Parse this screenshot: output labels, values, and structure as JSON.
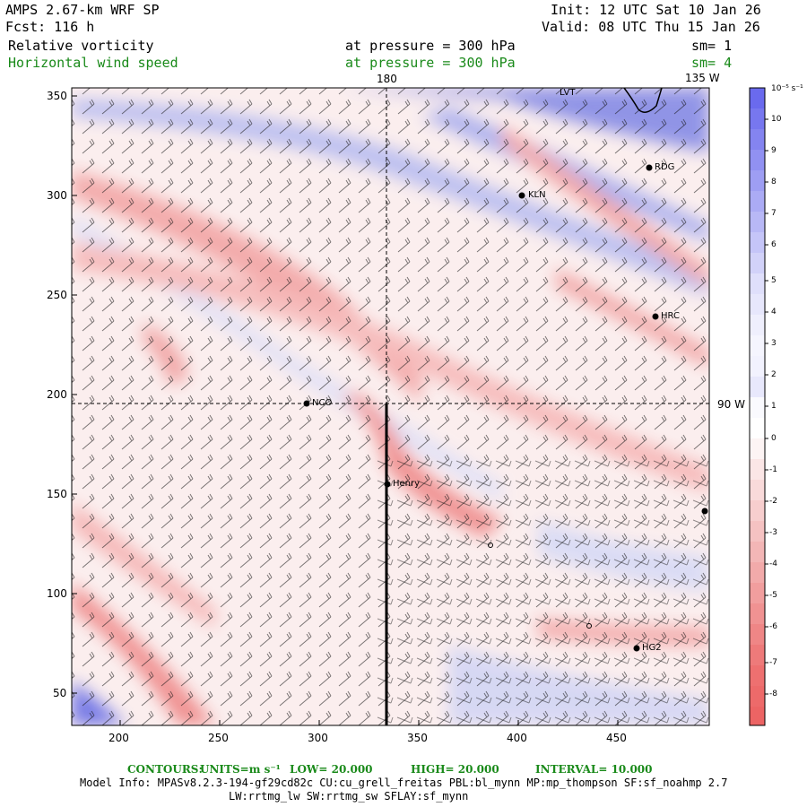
{
  "header": {
    "model": "AMPS 2.67-km WRF SP",
    "fcst": "Fcst:  116 h",
    "init": "Init: 12 UTC Sat 10 Jan 26",
    "valid": "Valid: 08 UTC Thu 15 Jan 26",
    "field1_name": "Relative vorticity",
    "field1_level": "at pressure =  300 hPa",
    "field1_sm": "sm= 1",
    "field2_name": "Horizontal wind speed",
    "field2_level": "at pressure =  300 hPa",
    "field2_sm": "sm= 4"
  },
  "map_labels": {
    "lon_180": "180",
    "lon_135w": "135 W",
    "lon_90w": "90 W"
  },
  "x_axis": {
    "ticks": [
      "200",
      "250",
      "300",
      "350",
      "400",
      "450"
    ]
  },
  "y_axis": {
    "ticks": [
      "350",
      "300",
      "250",
      "200",
      "150",
      "100",
      "50"
    ]
  },
  "colorbar": {
    "unit": "10⁻⁵ s⁻¹",
    "levels": [
      "10",
      "9",
      "8",
      "7",
      "6",
      "5",
      "4",
      "3",
      "2",
      "1",
      "0",
      "-1",
      "-2",
      "-3",
      "-4",
      "-5",
      "-6",
      "-7",
      "-8"
    ],
    "positive_color": "#6a6aee",
    "negative_color": "#ee6a6a"
  },
  "stations": [
    {
      "label": "RDG"
    },
    {
      "label": "KLN"
    },
    {
      "label": "HRC"
    },
    {
      "label": "NCO"
    },
    {
      "label": "Henry"
    },
    {
      "label": "HG2"
    },
    {
      "label": "LVT"
    }
  ],
  "footer": {
    "contours_label": "CONTOURS:",
    "units": "UNITS=m s⁻¹",
    "low": "LOW=  20.000",
    "high": "HIGH=  20.000",
    "interval": "INTERVAL=   10.000",
    "model_info": "Model Info: MPASv8.2.3-194-gf29cd82c CU:cu_grell_freitas PBL:bl_mynn MP:mp_thompson SF:sf_noahmp 2.7",
    "model_info2": "LW:rrtmg_lw SW:rrtmg_sw SFLAY:sf_mynn"
  }
}
